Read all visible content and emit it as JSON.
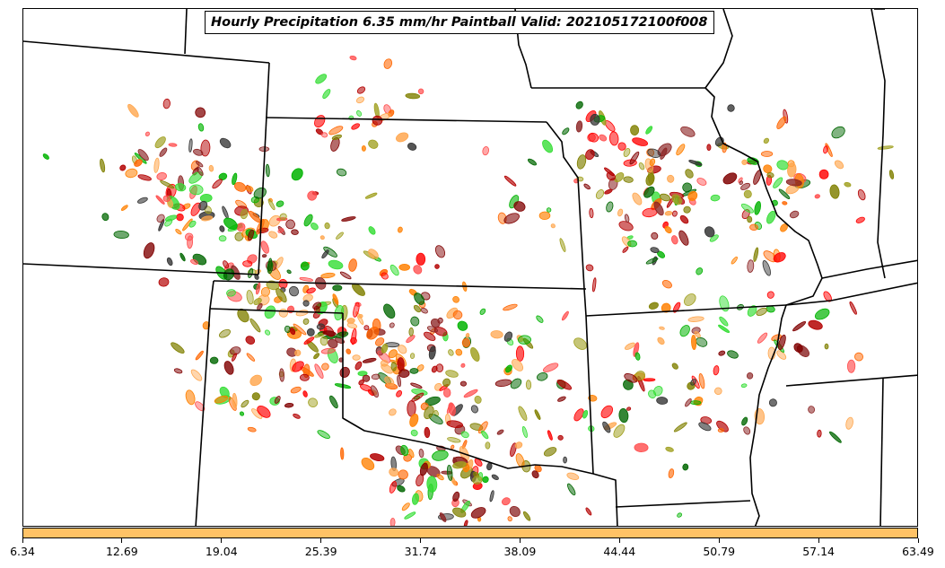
{
  "title": "Hourly Precipitation 6.35 mm/hr Paintball Valid: 202105172100f008",
  "colorbar": {
    "color": "#ffc266",
    "ticks": [
      "6.34",
      "12.69",
      "19.04",
      "25.39",
      "31.74",
      "38.09",
      "44.44",
      "50.79",
      "57.14",
      "63.49"
    ]
  },
  "paintball_colors": [
    "#ff0000",
    "#ff4d4d",
    "#b30000",
    "#800000",
    "#ff8000",
    "#ff6600",
    "#ffa64d",
    "#00b300",
    "#33dd33",
    "#006600",
    "#808000",
    "#a0a020",
    "#333333",
    "#8b2323"
  ]
}
